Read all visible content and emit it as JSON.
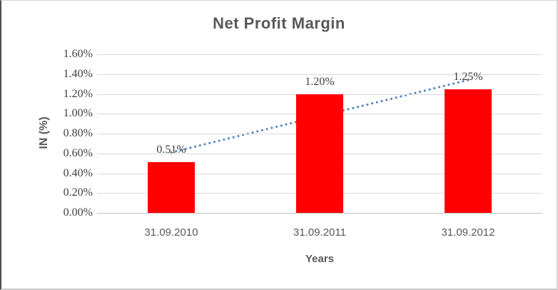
{
  "chart_data": {
    "type": "bar",
    "title": "Net Profit Margin",
    "categories": [
      "31.09.2010",
      "31.09.2011",
      "31.09.2012"
    ],
    "values": [
      0.51,
      1.2,
      1.25
    ],
    "data_labels": [
      "0.51%",
      "1.20%",
      "1.25%"
    ],
    "xlabel": "Years",
    "ylabel": "IN (%)",
    "ylim": [
      0,
      1.6
    ],
    "ytick_step": 0.2,
    "ytick_labels_top_to_bottom": [
      "1.60%",
      "1.40%",
      "1.20%",
      "1.00%",
      "0.80%",
      "0.60%",
      "0.40%",
      "0.20%",
      "0.00%"
    ],
    "grid": true,
    "legend": "none",
    "trendline": {
      "type": "linear",
      "style": "dotted",
      "start_value": 0.61,
      "end_value": 1.34
    },
    "colors": {
      "bar": "#FF0000",
      "trendline": "#4F81BD",
      "gridline": "#D9D9D9",
      "axis_line": "#BFBFBF",
      "heading_text": "#595959",
      "tick_text": "#404040"
    }
  }
}
